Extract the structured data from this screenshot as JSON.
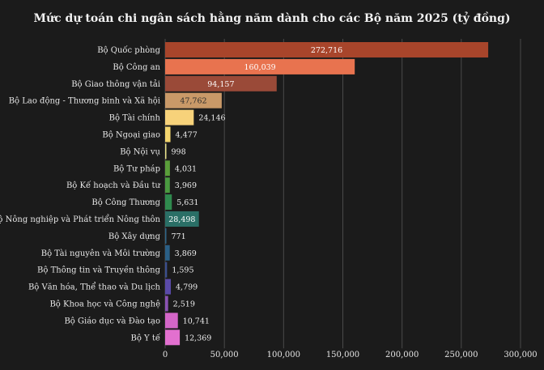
{
  "chart_data": {
    "type": "bar",
    "orientation": "horizontal",
    "title": "Mức dự toán chi ngân sách hằng năm dành cho các Bộ năm 2025 (tỷ đồng)",
    "xlabel": "",
    "ylabel": "",
    "xlim": [
      0,
      300000
    ],
    "grid": true,
    "legend": "none",
    "x_ticks": [
      "0",
      "50,000",
      "100,000",
      "150,000",
      "200,000",
      "250,000",
      "300,000"
    ],
    "categories": [
      "Bộ Quốc phòng",
      "Bộ Công an",
      "Bộ Giao thông vận tải",
      "Bộ Lao động - Thương binh và Xã hội",
      "Bộ Tài chính",
      "Bộ Ngoại giao",
      "Bộ Nội vụ",
      "Bộ Tư pháp",
      "Bộ Kế hoạch và Đầu tư",
      "Bộ Công Thương",
      "Bộ Nông nghiệp và Phát triển Nông thôn",
      "Bộ Xây dựng",
      "Bộ Tài nguyên và Môi trường",
      "Bộ Thông tin và Truyền thông",
      "Bộ Văn hóa, Thể thao và Du lịch",
      "Bộ Khoa học và Công nghệ",
      "Bộ Giáo dục và Đào tạo",
      "Bộ Y tế"
    ],
    "values": [
      272716,
      160039,
      94157,
      47762,
      24146,
      4477,
      998,
      4031,
      3969,
      5631,
      28498,
      771,
      3869,
      1595,
      4799,
      2519,
      10741,
      12369
    ],
    "value_labels": [
      "272,716",
      "160,039",
      "94,157",
      "47,762",
      "24,146",
      "4,477",
      "998",
      "4,031",
      "3,969",
      "5,631",
      "28,498",
      "771",
      "3,869",
      "1,595",
      "4,799",
      "2,519",
      "10,741",
      "12,369"
    ],
    "label_inside": [
      true,
      true,
      true,
      true,
      false,
      false,
      false,
      false,
      false,
      false,
      true,
      false,
      false,
      false,
      false,
      false,
      false,
      false
    ],
    "colors": [
      "#a8452b",
      "#e8734f",
      "#9a4a38",
      "#c99968",
      "#f7d27a",
      "#f3d56e",
      "#e8e08a",
      "#5a9e3a",
      "#4a9a40",
      "#2f8a4e",
      "#2a6f66",
      "#2f6688",
      "#2a5f86",
      "#3b4f8e",
      "#5a4aa8",
      "#8a52b2",
      "#d466c8",
      "#e270cf"
    ]
  }
}
